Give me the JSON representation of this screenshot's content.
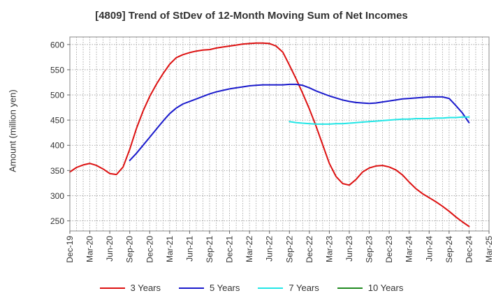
{
  "chart_data": {
    "type": "line",
    "title": "[4809]  Trend of StDev of 12-Month Moving Sum of Net Incomes",
    "xlabel": "",
    "ylabel": "Amount (million yen)",
    "x_tick_labels": [
      "Dec-19",
      "Mar-20",
      "Jun-20",
      "Sep-20",
      "Dec-20",
      "Mar-21",
      "Jun-21",
      "Sep-21",
      "Dec-21",
      "Mar-22",
      "Jun-22",
      "Sep-22",
      "Dec-22",
      "Mar-23",
      "Jun-23",
      "Sep-23",
      "Dec-23",
      "Mar-24",
      "Jun-24",
      "Sep-24",
      "Dec-24",
      "Mar-25"
    ],
    "y_ticks": [
      250,
      300,
      350,
      400,
      450,
      500,
      550,
      600
    ],
    "ylim": [
      230,
      615
    ],
    "grid": true,
    "legend_position": "bottom",
    "series": [
      {
        "name": "3 Years",
        "color": "#dd1111",
        "points": [
          [
            "Dec-19",
            347
          ],
          [
            "Jan-20",
            356
          ],
          [
            "Feb-20",
            361
          ],
          [
            "Mar-20",
            364
          ],
          [
            "Apr-20",
            360
          ],
          [
            "May-20",
            353
          ],
          [
            "Jun-20",
            344
          ],
          [
            "Jul-20",
            342
          ],
          [
            "Aug-20",
            357
          ],
          [
            "Sep-20",
            392
          ],
          [
            "Oct-20",
            433
          ],
          [
            "Nov-20",
            468
          ],
          [
            "Dec-20",
            497
          ],
          [
            "Jan-21",
            521
          ],
          [
            "Feb-21",
            542
          ],
          [
            "Mar-21",
            561
          ],
          [
            "Apr-21",
            574
          ],
          [
            "May-21",
            580
          ],
          [
            "Jun-21",
            584
          ],
          [
            "Jul-21",
            587
          ],
          [
            "Aug-21",
            589
          ],
          [
            "Sep-21",
            590
          ],
          [
            "Oct-21",
            593
          ],
          [
            "Nov-21",
            595
          ],
          [
            "Dec-21",
            597
          ],
          [
            "Jan-22",
            599
          ],
          [
            "Feb-22",
            601
          ],
          [
            "Mar-22",
            602
          ],
          [
            "Apr-22",
            603
          ],
          [
            "May-22",
            603
          ],
          [
            "Jun-22",
            602
          ],
          [
            "Jul-22",
            597
          ],
          [
            "Aug-22",
            585
          ],
          [
            "Sep-22",
            559
          ],
          [
            "Oct-22",
            532
          ],
          [
            "Nov-22",
            503
          ],
          [
            "Dec-22",
            472
          ],
          [
            "Jan-23",
            438
          ],
          [
            "Feb-23",
            401
          ],
          [
            "Mar-23",
            364
          ],
          [
            "Apr-23",
            338
          ],
          [
            "May-23",
            324
          ],
          [
            "Jun-23",
            321
          ],
          [
            "Jul-23",
            332
          ],
          [
            "Aug-23",
            347
          ],
          [
            "Sep-23",
            355
          ],
          [
            "Oct-23",
            359
          ],
          [
            "Nov-23",
            360
          ],
          [
            "Dec-23",
            357
          ],
          [
            "Jan-24",
            351
          ],
          [
            "Feb-24",
            341
          ],
          [
            "Mar-24",
            327
          ],
          [
            "Apr-24",
            314
          ],
          [
            "May-24",
            304
          ],
          [
            "Jun-24",
            296
          ],
          [
            "Jul-24",
            288
          ],
          [
            "Aug-24",
            279
          ],
          [
            "Sep-24",
            269
          ],
          [
            "Oct-24",
            258
          ],
          [
            "Nov-24",
            248
          ],
          [
            "Dec-24",
            239
          ]
        ]
      },
      {
        "name": "5 Years",
        "color": "#1a1acc",
        "points": [
          [
            "Sep-20",
            370
          ],
          [
            "Oct-20",
            384
          ],
          [
            "Nov-20",
            400
          ],
          [
            "Dec-20",
            416
          ],
          [
            "Jan-21",
            432
          ],
          [
            "Feb-21",
            448
          ],
          [
            "Mar-21",
            463
          ],
          [
            "Apr-21",
            474
          ],
          [
            "May-21",
            482
          ],
          [
            "Jun-21",
            487
          ],
          [
            "Jul-21",
            492
          ],
          [
            "Aug-21",
            497
          ],
          [
            "Sep-21",
            502
          ],
          [
            "Oct-21",
            506
          ],
          [
            "Nov-21",
            509
          ],
          [
            "Dec-21",
            512
          ],
          [
            "Jan-22",
            514
          ],
          [
            "Feb-22",
            516
          ],
          [
            "Mar-22",
            518
          ],
          [
            "Apr-22",
            519
          ],
          [
            "May-22",
            520
          ],
          [
            "Jun-22",
            520
          ],
          [
            "Jul-22",
            520
          ],
          [
            "Aug-22",
            520
          ],
          [
            "Sep-22",
            521
          ],
          [
            "Oct-22",
            521
          ],
          [
            "Nov-22",
            519
          ],
          [
            "Dec-22",
            514
          ],
          [
            "Jan-23",
            508
          ],
          [
            "Feb-23",
            503
          ],
          [
            "Mar-23",
            498
          ],
          [
            "Apr-23",
            494
          ],
          [
            "May-23",
            490
          ],
          [
            "Jun-23",
            487
          ],
          [
            "Jul-23",
            485
          ],
          [
            "Aug-23",
            484
          ],
          [
            "Sep-23",
            483
          ],
          [
            "Oct-23",
            484
          ],
          [
            "Nov-23",
            486
          ],
          [
            "Dec-23",
            488
          ],
          [
            "Jan-24",
            490
          ],
          [
            "Feb-24",
            492
          ],
          [
            "Mar-24",
            493
          ],
          [
            "Apr-24",
            494
          ],
          [
            "May-24",
            495
          ],
          [
            "Jun-24",
            496
          ],
          [
            "Jul-24",
            496
          ],
          [
            "Aug-24",
            496
          ],
          [
            "Sep-24",
            493
          ],
          [
            "Oct-24",
            479
          ],
          [
            "Nov-24",
            464
          ],
          [
            "Dec-24",
            445
          ]
        ]
      },
      {
        "name": "7 Years",
        "color": "#22e6e6",
        "points": [
          [
            "Sep-22",
            447
          ],
          [
            "Oct-22",
            445
          ],
          [
            "Nov-22",
            444
          ],
          [
            "Dec-22",
            443
          ],
          [
            "Jan-23",
            442
          ],
          [
            "Feb-23",
            442
          ],
          [
            "Mar-23",
            442
          ],
          [
            "Apr-23",
            443
          ],
          [
            "May-23",
            443
          ],
          [
            "Jun-23",
            444
          ],
          [
            "Jul-23",
            445
          ],
          [
            "Aug-23",
            446
          ],
          [
            "Sep-23",
            447
          ],
          [
            "Oct-23",
            448
          ],
          [
            "Nov-23",
            449
          ],
          [
            "Dec-23",
            450
          ],
          [
            "Jan-24",
            451
          ],
          [
            "Feb-24",
            452
          ],
          [
            "Mar-24",
            452
          ],
          [
            "Apr-24",
            453
          ],
          [
            "May-24",
            453
          ],
          [
            "Jun-24",
            453
          ],
          [
            "Jul-24",
            454
          ],
          [
            "Aug-24",
            454
          ],
          [
            "Sep-24",
            455
          ],
          [
            "Oct-24",
            455
          ],
          [
            "Nov-24",
            456
          ],
          [
            "Dec-24",
            456
          ]
        ]
      },
      {
        "name": "10 Years",
        "color": "#1f8a1f",
        "points": []
      }
    ]
  }
}
